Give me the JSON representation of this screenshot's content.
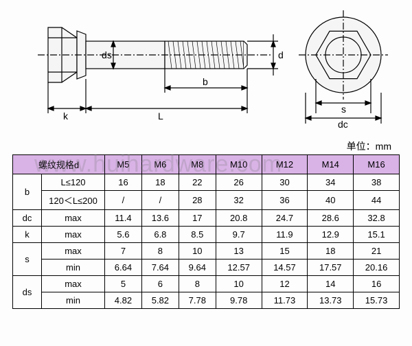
{
  "unit_label": "单位：mm",
  "watermark": "www.huihardware.com",
  "diagram": {
    "labels": {
      "ds": "ds",
      "d": "d",
      "b": "b",
      "L": "L",
      "k": "k",
      "s": "s",
      "dc": "dc"
    },
    "stroke": "#000000",
    "fill": "#f5f5f5"
  },
  "table": {
    "header_label": "螺纹规格d",
    "sizes": [
      "M5",
      "M6",
      "M8",
      "M10",
      "M12",
      "M14",
      "M16"
    ],
    "rows": [
      {
        "group": "b",
        "sub": "L≤120",
        "values": [
          "16",
          "18",
          "22",
          "26",
          "30",
          "34",
          "38"
        ]
      },
      {
        "group": "b",
        "sub": "120＜L≤200",
        "values": [
          "/",
          "/",
          "28",
          "32",
          "36",
          "40",
          "44"
        ]
      },
      {
        "group": "dc",
        "sub": "max",
        "values": [
          "11.4",
          "13.6",
          "17",
          "20.8",
          "24.7",
          "28.6",
          "32.8"
        ]
      },
      {
        "group": "k",
        "sub": "max",
        "values": [
          "5.6",
          "6.8",
          "8.5",
          "9.7",
          "11.9",
          "12.9",
          "15.1"
        ]
      },
      {
        "group": "s",
        "sub": "max",
        "values": [
          "7",
          "8",
          "10",
          "13",
          "15",
          "18",
          "21"
        ]
      },
      {
        "group": "s",
        "sub": "min",
        "values": [
          "6.64",
          "7.64",
          "9.64",
          "12.57",
          "14.57",
          "17.57",
          "20.16"
        ]
      },
      {
        "group": "ds",
        "sub": "max",
        "values": [
          "5",
          "6",
          "8",
          "10",
          "12",
          "14",
          "16"
        ]
      },
      {
        "group": "ds",
        "sub": "min",
        "values": [
          "4.82",
          "5.82",
          "7.78",
          "9.78",
          "11.73",
          "13.73",
          "15.73"
        ]
      }
    ],
    "colors": {
      "header_bg": "#d9b3e6",
      "border": "#000000",
      "text": "#000000"
    }
  }
}
